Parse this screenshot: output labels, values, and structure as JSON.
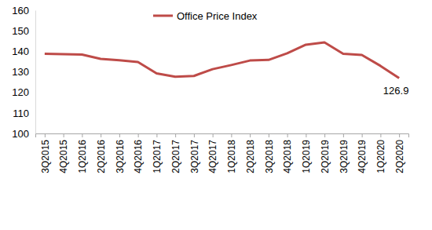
{
  "chart_data": {
    "type": "line",
    "categories": [
      "3Q2015",
      "4Q2015",
      "1Q2016",
      "2Q2016",
      "3Q2016",
      "4Q2016",
      "1Q2017",
      "2Q2017",
      "3Q2017",
      "4Q2017",
      "1Q2018",
      "2Q2018",
      "3Q2018",
      "4Q2018",
      "1Q2019",
      "2Q2019",
      "3Q2019",
      "4Q2019",
      "1Q2020",
      "2Q2020"
    ],
    "series": [
      {
        "name": "Office Price Index",
        "color": "#be4b48",
        "values": [
          138.8,
          138.6,
          138.4,
          136.3,
          135.6,
          134.8,
          129.2,
          127.6,
          128.0,
          131.3,
          133.3,
          135.5,
          135.8,
          139.0,
          143.2,
          144.3,
          138.8,
          138.2,
          132.9,
          126.9
        ]
      }
    ],
    "ylim": [
      100,
      160
    ],
    "yticks": [
      100,
      110,
      120,
      130,
      140,
      150,
      160
    ],
    "grid": false,
    "legend": "top",
    "annotations": [
      {
        "category": "2Q2020",
        "text": "126.9"
      }
    ]
  }
}
